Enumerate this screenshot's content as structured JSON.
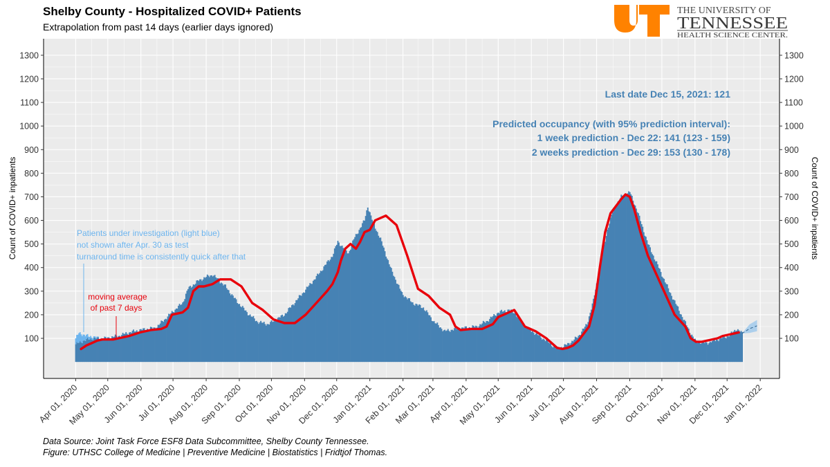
{
  "header": {
    "title": "Shelby County - Hospitalized COVID+ Patients",
    "subtitle": "Extrapolation from past 14 days (earlier days ignored)"
  },
  "logo": {
    "line1": "THE UNIVERSITY OF",
    "line2": "TENNESSEE",
    "line3": "HEALTH SCIENCE CENTER.",
    "mark_color": "#ff8200",
    "text_color": "#4b4b4b"
  },
  "colors": {
    "bars": "#4682b4",
    "pui_bars": "#6cb4ee",
    "moving_avg": "#e8000b",
    "annotation_blue": "#4682b4",
    "panel_bg": "#ebebeb",
    "prediction_band": "#9cc8ec"
  },
  "footer": {
    "line1": "Data Source: Joint Task Force ESF8 Data Subcommittee, Shelby County Tennessee.",
    "line2": "Figure: UTHSC College of Medicine | Preventive Medicine | Biostatistics | Fridtjof Thomas."
  },
  "chart_data": {
    "type": "bar",
    "title": "Shelby County - Hospitalized COVID+ Patients",
    "ylabel": "Count of COVID+ inpatients",
    "ylabel_right": "Count of COVID+ inpatients",
    "ylim": [
      -70,
      1370
    ],
    "y_ticks": [
      100,
      200,
      300,
      400,
      500,
      600,
      700,
      800,
      900,
      1000,
      1100,
      1200,
      1300
    ],
    "x_ticks": [
      {
        "day": 0,
        "label": "Apr 01, 2020"
      },
      {
        "day": 30,
        "label": "May 01, 2020"
      },
      {
        "day": 61,
        "label": "Jun 01, 2020"
      },
      {
        "day": 91,
        "label": "Jul 01, 2020"
      },
      {
        "day": 122,
        "label": "Aug 01, 2020"
      },
      {
        "day": 153,
        "label": "Sep 01, 2020"
      },
      {
        "day": 183,
        "label": "Oct 01, 2020"
      },
      {
        "day": 214,
        "label": "Nov 01, 2020"
      },
      {
        "day": 244,
        "label": "Dec 01, 2020"
      },
      {
        "day": 275,
        "label": "Jan 01, 2021"
      },
      {
        "day": 306,
        "label": "Feb 01, 2021"
      },
      {
        "day": 334,
        "label": "Mar 01, 2021"
      },
      {
        "day": 365,
        "label": "Apr 01, 2021"
      },
      {
        "day": 395,
        "label": "May 01, 2021"
      },
      {
        "day": 426,
        "label": "Jun 01, 2021"
      },
      {
        "day": 456,
        "label": "Jul 01, 2021"
      },
      {
        "day": 487,
        "label": "Aug 01, 2021"
      },
      {
        "day": 518,
        "label": "Sep 01, 2021"
      },
      {
        "day": 548,
        "label": "Oct 01, 2021"
      },
      {
        "day": 579,
        "label": "Nov 01, 2021"
      },
      {
        "day": 609,
        "label": "Dec 01, 2021"
      },
      {
        "day": 640,
        "label": "Jan 01, 2022"
      }
    ],
    "x_range_days": [
      -30,
      658
    ],
    "data_start_day": 0,
    "last_data_day": 623,
    "last_value": 121,
    "series_daily_keyframes": {
      "name": "COVID+ inpatients (daily)",
      "days": [
        0,
        7,
        15,
        25,
        40,
        50,
        60,
        75,
        90,
        100,
        105,
        115,
        122,
        128,
        140,
        150,
        160,
        170,
        180,
        195,
        210,
        225,
        240,
        245,
        255,
        260,
        265,
        270,
        273,
        278,
        285,
        295,
        305,
        315,
        325,
        335,
        345,
        355,
        365,
        375,
        385,
        395,
        405,
        410,
        420,
        430,
        440,
        450,
        458,
        465,
        470,
        478,
        484,
        490,
        497,
        503,
        510,
        518,
        525,
        535,
        545,
        555,
        565,
        575,
        580,
        590,
        600,
        610,
        618,
        623
      ],
      "values": [
        75,
        90,
        100,
        98,
        110,
        125,
        135,
        145,
        210,
        250,
        310,
        345,
        360,
        370,
        320,
        260,
        210,
        170,
        160,
        200,
        280,
        360,
        450,
        510,
        460,
        520,
        560,
        600,
        660,
        590,
        520,
        390,
        290,
        250,
        230,
        170,
        130,
        140,
        145,
        150,
        175,
        210,
        220,
        210,
        150,
        120,
        90,
        55,
        70,
        90,
        110,
        160,
        260,
        400,
        560,
        650,
        700,
        720,
        640,
        500,
        400,
        300,
        210,
        120,
        85,
        80,
        95,
        110,
        140,
        121
      ]
    },
    "series_pui": {
      "name": "Patients under investigation",
      "days": [
        0,
        3,
        6,
        9,
        12,
        15,
        18,
        21,
        24,
        27,
        29
      ],
      "values": [
        25,
        40,
        30,
        20,
        12,
        8,
        5,
        3,
        2,
        1,
        0
      ]
    },
    "series_moving_average": {
      "name": "moving average of past 7 days",
      "days": [
        5,
        10,
        15,
        20,
        25,
        35,
        40,
        50,
        60,
        70,
        80,
        85,
        90,
        95,
        100,
        105,
        110,
        115,
        120,
        128,
        135,
        145,
        155,
        165,
        175,
        185,
        195,
        205,
        215,
        225,
        235,
        240,
        245,
        248,
        252,
        257,
        262,
        266,
        270,
        275,
        280,
        290,
        300,
        310,
        320,
        330,
        340,
        350,
        355,
        360,
        370,
        380,
        390,
        395,
        400,
        405,
        410,
        420,
        430,
        440,
        450,
        455,
        460,
        465,
        470,
        475,
        480,
        485,
        490,
        495,
        500,
        505,
        510,
        514,
        518,
        522,
        528,
        535,
        540,
        550,
        560,
        570,
        575,
        580,
        585,
        590,
        600,
        605,
        610,
        615,
        620
      ],
      "values": [
        55,
        70,
        80,
        90,
        95,
        95,
        100,
        110,
        125,
        135,
        140,
        150,
        200,
        205,
        210,
        230,
        300,
        320,
        320,
        330,
        350,
        350,
        320,
        250,
        220,
        180,
        165,
        165,
        200,
        250,
        300,
        330,
        380,
        430,
        480,
        500,
        480,
        510,
        550,
        560,
        600,
        620,
        580,
        450,
        310,
        280,
        230,
        200,
        150,
        135,
        140,
        140,
        160,
        190,
        200,
        210,
        220,
        150,
        130,
        100,
        60,
        55,
        60,
        70,
        90,
        120,
        150,
        240,
        400,
        550,
        630,
        660,
        690,
        710,
        700,
        650,
        550,
        450,
        400,
        300,
        200,
        150,
        100,
        85,
        85,
        90,
        100,
        110,
        115,
        120,
        125
      ]
    },
    "prediction": {
      "start_day": 623,
      "start_value": 121,
      "one_week": {
        "day": 630,
        "value": 141,
        "lower": 123,
        "upper": 159
      },
      "two_weeks": {
        "day": 637,
        "value": 153,
        "lower": 130,
        "upper": 178
      }
    },
    "annotations": {
      "last_date": "Last date Dec 15, 2021: 121",
      "predicted_heading": "Predicted occupancy (with 95% prediction interval):",
      "one_week": "1 week prediction - Dec 22: 141 (123 - 159)",
      "two_weeks": "2 weeks prediction - Dec 29: 153 (130 - 178)",
      "pui_note_line1": "Patients under investigation (light blue)",
      "pui_note_line2": "not shown after Apr. 30 as test",
      "pui_note_line3": "turnaround time is consistently quick after that",
      "ma_note_line1": "moving average",
      "ma_note_line2": "of past 7 days"
    }
  }
}
